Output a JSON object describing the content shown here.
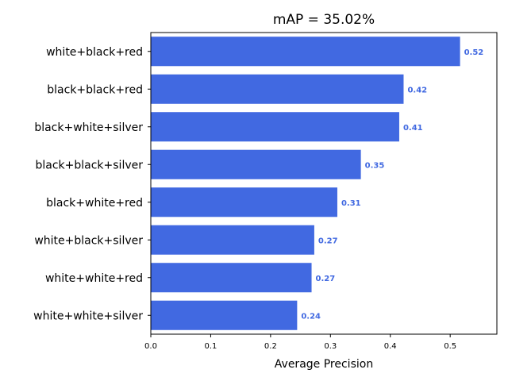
{
  "chart_data": {
    "type": "bar",
    "orientation": "horizontal",
    "title": "mAP = 35.02%",
    "xlabel": "Average Precision",
    "ylabel": "",
    "categories": [
      "white+black+red",
      "black+black+red",
      "black+white+silver",
      "black+black+silver",
      "black+white+red",
      "white+black+silver",
      "white+white+red",
      "white+white+silver"
    ],
    "values": [
      0.5165,
      0.4222,
      0.4149,
      0.3508,
      0.3115,
      0.273,
      0.2685,
      0.2444
    ],
    "value_labels": [
      "0.52",
      "0.42",
      "0.41",
      "0.35",
      "0.31",
      "0.27",
      "0.27",
      "0.24"
    ],
    "xlim": [
      0,
      0.578
    ],
    "xticks": [
      0.0,
      0.1,
      0.2,
      0.3,
      0.4,
      0.5
    ],
    "xtick_labels": [
      "0.0",
      "0.1",
      "0.2",
      "0.3",
      "0.4",
      "0.5"
    ],
    "grid": false,
    "legend": "none",
    "bar_color": "#4169e1",
    "label_color": "#4169e1"
  }
}
